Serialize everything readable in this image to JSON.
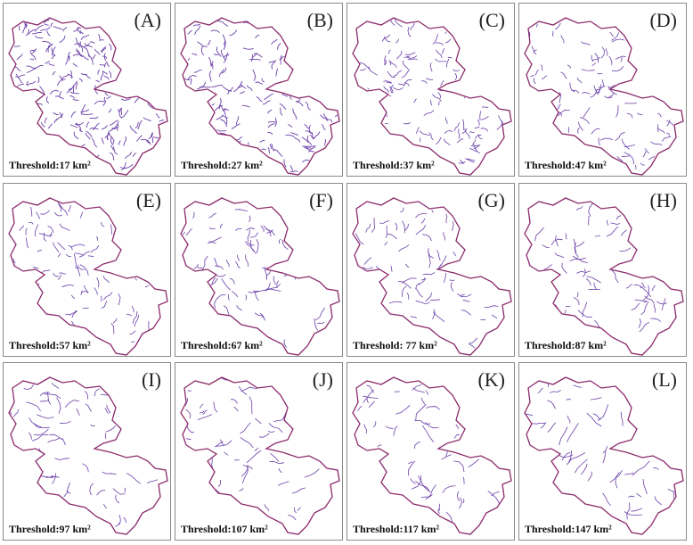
{
  "panels": [
    {
      "label": "(A)",
      "threshold": "Threshold:17 km²",
      "threshold_km2": 17
    },
    {
      "label": "(B)",
      "threshold": "Threshold:27 km²",
      "threshold_km2": 27
    },
    {
      "label": "(C)",
      "threshold": "Threshold:37 km²",
      "threshold_km2": 37
    },
    {
      "label": "(D)",
      "threshold": "Threshold:47 km²",
      "threshold_km2": 47
    },
    {
      "label": "(E)",
      "threshold": "Threshold:57 km²",
      "threshold_km2": 57
    },
    {
      "label": "(F)",
      "threshold": "Threshold:67 km²",
      "threshold_km2": 67
    },
    {
      "label": "(G)",
      "threshold": "Threshold: 77 km²",
      "threshold_km2": 77
    },
    {
      "label": "(H)",
      "threshold": "Threshold:87 km²",
      "threshold_km2": 87
    },
    {
      "label": "(I)",
      "threshold": "Threshold:97 km²",
      "threshold_km2": 97
    },
    {
      "label": "(J)",
      "threshold": "Threshold:107 km²",
      "threshold_km2": 107
    },
    {
      "label": "(K)",
      "threshold": "Threshold:117 km²",
      "threshold_km2": 117
    },
    {
      "label": "(L)",
      "threshold": "Threshold:147 km²",
      "threshold_km2": 147
    }
  ],
  "colors": {
    "boundary": "#8b2a6b",
    "subbasin_lines": "#6a3fa8",
    "panel_border": "#8a8a8a"
  }
}
